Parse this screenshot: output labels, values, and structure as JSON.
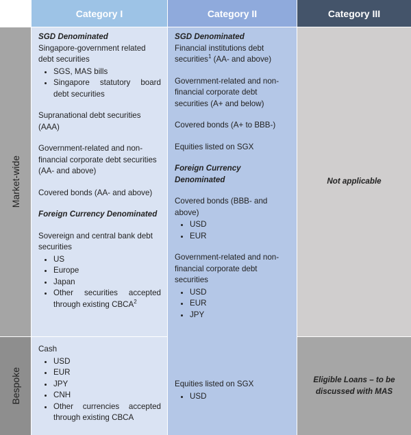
{
  "header": {
    "columns": [
      "Category I",
      "Category II",
      "Category III"
    ]
  },
  "rows": [
    {
      "label": "Market-wide",
      "cells": [
        [
          {
            "heading": "SGD Denominated"
          },
          {
            "text": "Singapore-government related debt securities",
            "bullets": [
              "SGS, MAS bills",
              "Singapore statutory board debt securities"
            ]
          },
          {
            "text": "Supranational debt securities (AAA)"
          },
          {
            "text": "Government-related and non-financial corporate debt securities (AA- and above)"
          },
          {
            "text": "Covered bonds (AA- and above)"
          },
          {
            "heading": "Foreign Currency Denominated"
          },
          {
            "text": "Sovereign and central bank debt securities",
            "bullets": [
              "US",
              "Europe",
              "Japan",
              {
                "text": "Other securities accepted through existing CBCA",
                "sup": "2"
              }
            ]
          }
        ],
        [
          {
            "heading": "SGD Denominated"
          },
          {
            "text": "Financial institutions debt securities",
            "sup": "1",
            "after": " (AA- and above)"
          },
          {
            "text": "Government-related and non-financial corporate debt securities (A+ and below)"
          },
          {
            "text": "Covered bonds (A+ to BBB-)"
          },
          {
            "text": "Equities listed on SGX"
          },
          {
            "heading": "Foreign Currency Denominated"
          },
          {
            "text": "Covered bonds (BBB- and above)",
            "bullets": [
              "USD",
              "EUR"
            ]
          },
          {
            "text": "Government-related and non-financial corporate debt securities",
            "bullets": [
              "USD",
              "EUR",
              "JPY"
            ]
          }
        ],
        [
          {
            "emph": "Not applicable"
          }
        ]
      ]
    },
    {
      "label": "Bespoke",
      "cells": [
        [
          {
            "text": "Cash",
            "bullets": [
              "USD",
              "EUR",
              "JPY",
              "CNH",
              "Other currencies accepted through existing CBCA"
            ]
          }
        ],
        [
          {
            "text": "Equities listed on SGX",
            "bullets": [
              "USD"
            ]
          }
        ],
        [
          {
            "emph": "Eligible Loans – to be discussed with MAS"
          }
        ]
      ]
    }
  ]
}
